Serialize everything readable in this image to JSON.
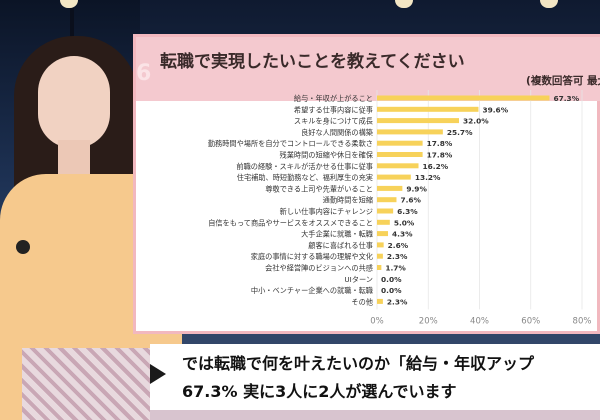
{
  "chart_data": {
    "type": "bar",
    "orientation": "horizontal",
    "title": "転職で実現したいことを教えてください",
    "subtitle": "(複数回答可 最大",
    "categories": [
      "給与・年収が上がること",
      "希望する仕事内容に従事",
      "スキルを身につけて成長",
      "良好な人間関係の構築",
      "勤務時間や場所を自分でコントロールできる柔軟さ",
      "残業時間の短縮や休日を確保",
      "前職の経験・スキルが活かせる仕事に従事",
      "住宅補助、時短勤務など、福利厚生の充実",
      "尊敬できる上司や先輩がいること",
      "通勤時間を短縮",
      "新しい仕事内容にチャレンジ",
      "自信をもって商品やサービスをオススメできること",
      "大手企業に就職・転職",
      "顧客に喜ばれる仕事",
      "家庭の事情に対する職場の理解や文化",
      "会社や経営陣のビジョンへの共感",
      "UIターン",
      "中小・ベンチャー企業への就職・転職",
      "その他"
    ],
    "values": [
      67.3,
      39.6,
      32.0,
      25.7,
      17.8,
      17.8,
      16.2,
      13.2,
      9.9,
      7.6,
      6.3,
      5.0,
      4.3,
      2.6,
      2.3,
      1.7,
      0.0,
      0.0,
      2.3
    ],
    "value_labels": [
      "67.3%",
      "39.6%",
      "32.0%",
      "25.7%",
      "17.8%",
      "17.8%",
      "16.2%",
      "13.2%",
      "9.9%",
      "7.6%",
      "6.3%",
      "5.0%",
      "4.3%",
      "2.6%",
      "2.3%",
      "1.7%",
      "0.0%",
      "0.0%",
      "2.3%"
    ],
    "x_ticks": [
      "0%",
      "20%",
      "40%",
      "60%",
      "80%"
    ],
    "xlim": [
      0,
      80
    ],
    "bar_color": "#f7d25a",
    "grid": true
  },
  "panel": {
    "logo": "6"
  },
  "caption": {
    "line1": "では転職で何を叶えたいのか「給与・年収アップ",
    "line2": "67.3% 実に3人に2人が選んでいます"
  }
}
